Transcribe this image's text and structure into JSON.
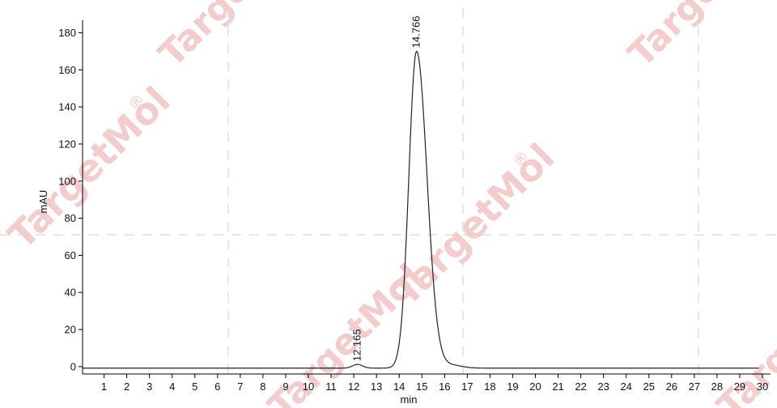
{
  "watermark": {
    "text": "TargetMol",
    "symbol": "®",
    "color": "#f3cccc"
  },
  "chart_data": {
    "type": "line",
    "xlabel": "min",
    "ylabel": "mAU",
    "xlim": [
      0,
      30
    ],
    "ylim": [
      -2,
      188
    ],
    "xticks": [
      1,
      2,
      3,
      4,
      5,
      6,
      7,
      8,
      9,
      10,
      11,
      12,
      13,
      14,
      15,
      16,
      17,
      18,
      19,
      20,
      21,
      22,
      23,
      24,
      25,
      26,
      27,
      28,
      29,
      30
    ],
    "yticks": [
      0,
      20,
      40,
      60,
      80,
      100,
      120,
      140,
      160,
      180
    ],
    "grid": false,
    "line_color": "#222222",
    "baseline": -0.8,
    "peaks": [
      {
        "label": "12.165",
        "retention_time": 12.165,
        "height": 1.2
      },
      {
        "label": "14.766",
        "retention_time": 14.766,
        "height": 170
      }
    ]
  }
}
